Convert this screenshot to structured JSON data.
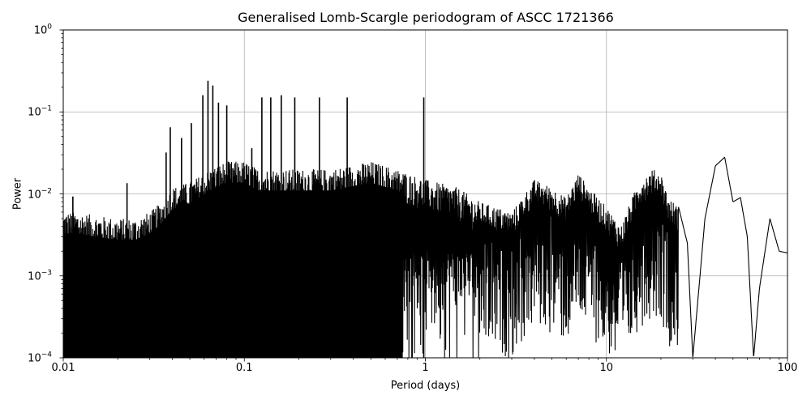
{
  "chart_data": {
    "type": "line",
    "title": "Generalised Lomb-Scargle periodogram of ASCC 1721366",
    "xlabel": "Period (days)",
    "ylabel": "Power",
    "xscale": "log",
    "yscale": "log",
    "xlim": [
      0.01,
      100
    ],
    "ylim": [
      0.0001,
      1
    ],
    "grid": true,
    "legend": null,
    "line_color": "#000000",
    "grid_color": "#b0b0b0",
    "xticks": [
      {
        "value": 0.01,
        "label": "0.01"
      },
      {
        "value": 0.1,
        "label": "0.1"
      },
      {
        "value": 1,
        "label": "1"
      },
      {
        "value": 10,
        "label": "10"
      },
      {
        "value": 100,
        "label": "100"
      }
    ],
    "yticks": [
      {
        "value": 0.0001,
        "base": "10",
        "exp": "−4"
      },
      {
        "value": 0.001,
        "base": "10",
        "exp": "−3"
      },
      {
        "value": 0.01,
        "base": "10",
        "exp": "−2"
      },
      {
        "value": 0.1,
        "base": "10",
        "exp": "−1"
      },
      {
        "value": 1,
        "base": "10",
        "exp": "0"
      }
    ],
    "notable_peaks": [
      {
        "period": 0.0113,
        "power": 0.0093
      },
      {
        "period": 0.0225,
        "power": 0.0135
      },
      {
        "period": 0.037,
        "power": 0.032
      },
      {
        "period": 0.039,
        "power": 0.065
      },
      {
        "period": 0.045,
        "power": 0.048
      },
      {
        "period": 0.051,
        "power": 0.073
      },
      {
        "period": 0.059,
        "power": 0.16
      },
      {
        "period": 0.063,
        "power": 0.24
      },
      {
        "period": 0.067,
        "power": 0.21
      },
      {
        "period": 0.072,
        "power": 0.13
      },
      {
        "period": 0.08,
        "power": 0.12
      },
      {
        "period": 0.11,
        "power": 0.036
      },
      {
        "period": 0.125,
        "power": 0.15
      },
      {
        "period": 0.14,
        "power": 0.15
      },
      {
        "period": 0.16,
        "power": 0.16
      },
      {
        "period": 0.19,
        "power": 0.15
      },
      {
        "period": 0.26,
        "power": 0.15
      },
      {
        "period": 0.37,
        "power": 0.15
      },
      {
        "period": 0.98,
        "power": 0.15
      },
      {
        "period": 3.8,
        "power": 0.036
      },
      {
        "period": 6.9,
        "power": 0.027
      },
      {
        "period": 20.5,
        "power": 0.025
      },
      {
        "period": 39.0,
        "power": 0.027
      },
      {
        "period": 44.0,
        "power": 0.03
      },
      {
        "period": 57.0,
        "power": 0.009
      },
      {
        "period": 80.0,
        "power": 0.0053
      }
    ],
    "envelope": {
      "description": "Approximate upper envelope of dense oscillating periodogram (period, power)",
      "x": [
        0.01,
        0.012,
        0.015,
        0.02,
        0.025,
        0.03,
        0.035,
        0.04,
        0.05,
        0.06,
        0.07,
        0.08,
        0.1,
        0.12,
        0.15,
        0.2,
        0.3,
        0.5,
        0.7,
        1.0,
        1.5,
        2,
        3,
        4,
        5,
        6,
        7,
        8,
        10,
        12,
        15,
        18,
        20,
        22,
        25,
        28,
        30,
        33,
        35,
        40,
        45,
        50,
        55,
        60,
        65,
        70,
        80,
        90,
        100
      ],
      "y": [
        0.006,
        0.006,
        0.0055,
        0.005,
        0.005,
        0.006,
        0.008,
        0.012,
        0.014,
        0.018,
        0.022,
        0.025,
        0.025,
        0.02,
        0.02,
        0.02,
        0.02,
        0.025,
        0.02,
        0.015,
        0.012,
        0.008,
        0.006,
        0.015,
        0.012,
        0.009,
        0.018,
        0.012,
        0.007,
        0.004,
        0.014,
        0.02,
        0.018,
        0.009,
        0.007,
        0.0025,
        0.0001,
        0.0011,
        0.005,
        0.022,
        0.028,
        0.008,
        0.009,
        0.003,
        0.0001,
        0.0007,
        0.005,
        0.002,
        0.0019
      ]
    }
  }
}
